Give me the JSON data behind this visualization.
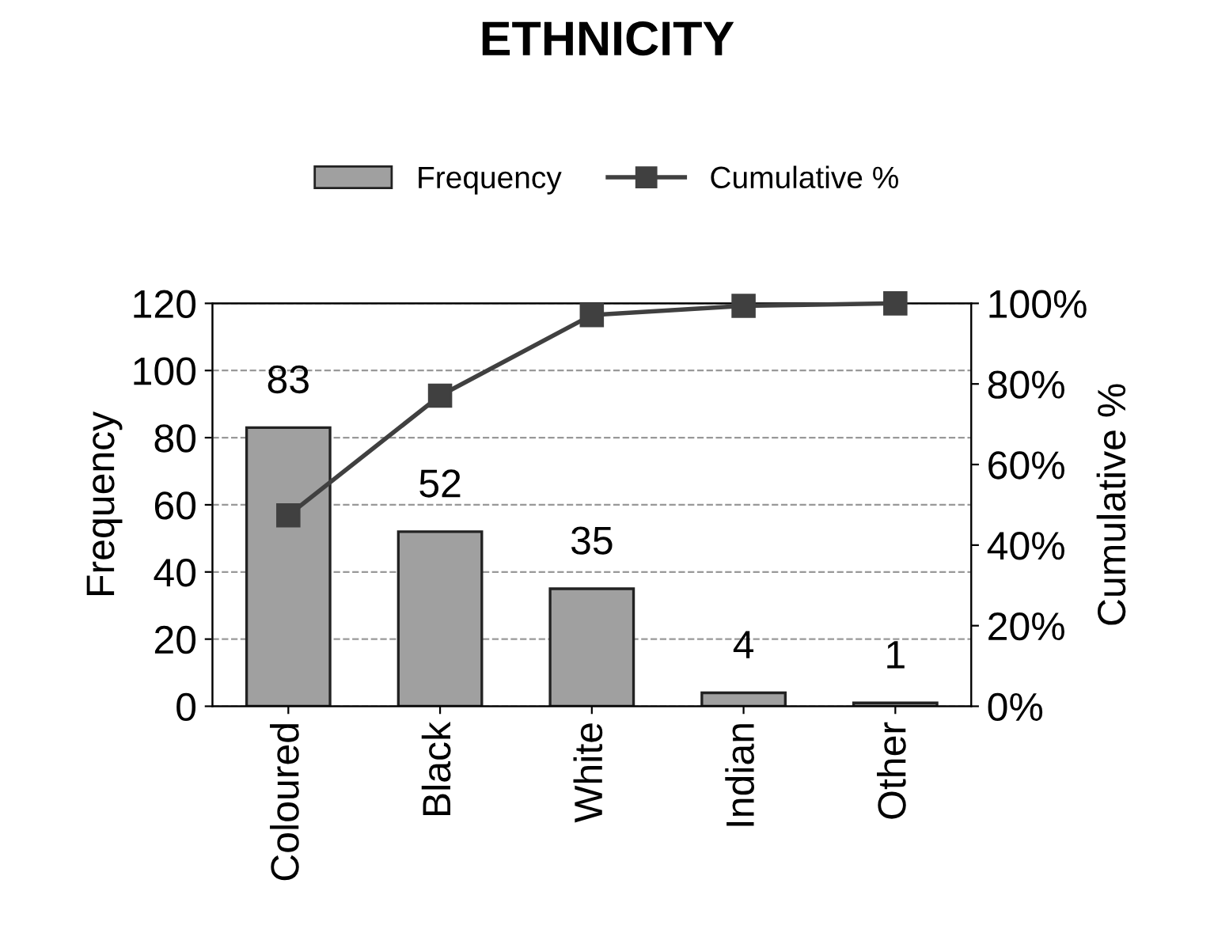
{
  "chart_data": {
    "type": "bar",
    "title": "ETHNICITY",
    "ylabel": "Frequency",
    "y2label": "Cumulative %",
    "categories": [
      "Coloured",
      "Black",
      "White",
      "Indian",
      "Other"
    ],
    "series": [
      {
        "name": "Frequency",
        "color": "#a0a0a0",
        "values": [
          83,
          52,
          35,
          4,
          1
        ],
        "data_labels": true
      },
      {
        "name": "Cumulative %",
        "type": "line",
        "axis": "y2",
        "color": "#404040",
        "values": [
          47.4,
          77.1,
          97.1,
          99.4,
          100
        ],
        "marker": "square"
      }
    ],
    "ylim": [
      0,
      120
    ],
    "yticks": [
      0,
      20,
      40,
      60,
      80,
      100,
      120
    ],
    "y2lim": [
      0,
      100
    ],
    "y2ticks": [
      {
        "value": 0,
        "label": "0%"
      },
      {
        "value": 20,
        "label": "20%"
      },
      {
        "value": 40,
        "label": "40%"
      },
      {
        "value": 60,
        "label": "60%"
      },
      {
        "value": 80,
        "label": "80%"
      },
      {
        "value": 100,
        "label": "100%"
      }
    ],
    "grid": "y",
    "legend": "top"
  }
}
